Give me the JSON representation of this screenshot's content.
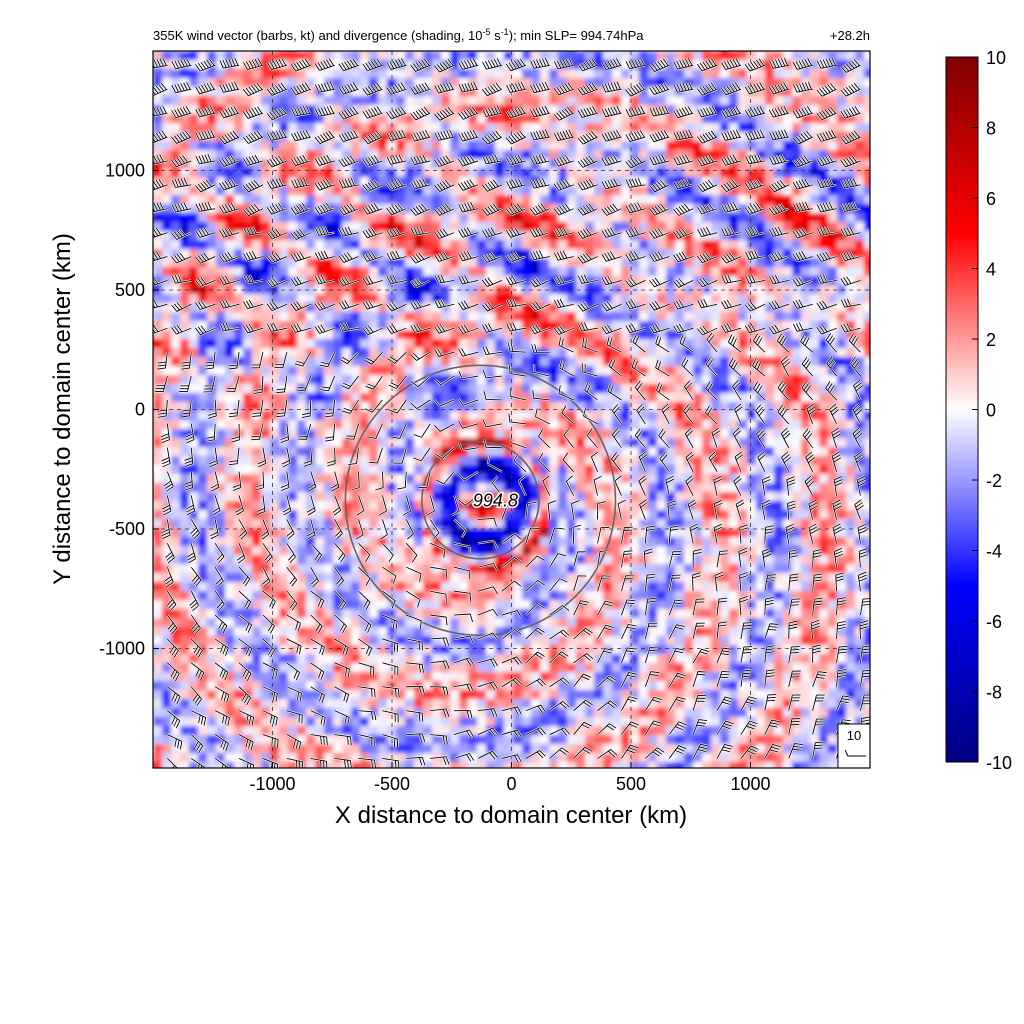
{
  "chart_data": {
    "type": "heatmap",
    "title_left": "355K wind vector (barbs, kt) and divergence (shading, 10",
    "title_exp": "-5",
    "title_mid": " s",
    "title_exp2": "-1",
    "title_right": "); min SLP= 994.74hPa",
    "time_label": "+28.2h",
    "xlabel": "X distance to domain center (km)",
    "ylabel": "Y distance to domain center (km)",
    "xlim": [
      -1500,
      1500
    ],
    "ylim": [
      -1500,
      1500
    ],
    "xticks": [
      "-1000",
      "-500",
      "0",
      "500",
      "1000"
    ],
    "yticks": [
      "1000",
      "500",
      "0",
      "-500",
      "-1000"
    ],
    "colorbar": {
      "min": -10,
      "max": 10,
      "ticks": [
        "10",
        "8",
        "6",
        "4",
        "2",
        "0",
        "-2",
        "-4",
        "-6",
        "-8",
        "-10"
      ],
      "colors": [
        "#00007f",
        "#0000ff",
        "#ffffff",
        "#ff0000",
        "#7f0000"
      ]
    },
    "center_label": "994.8",
    "center": [
      -130,
      -380
    ],
    "range_rings_km": [
      490,
      1130
    ],
    "reference_barb": "10",
    "grid": "dashed"
  }
}
